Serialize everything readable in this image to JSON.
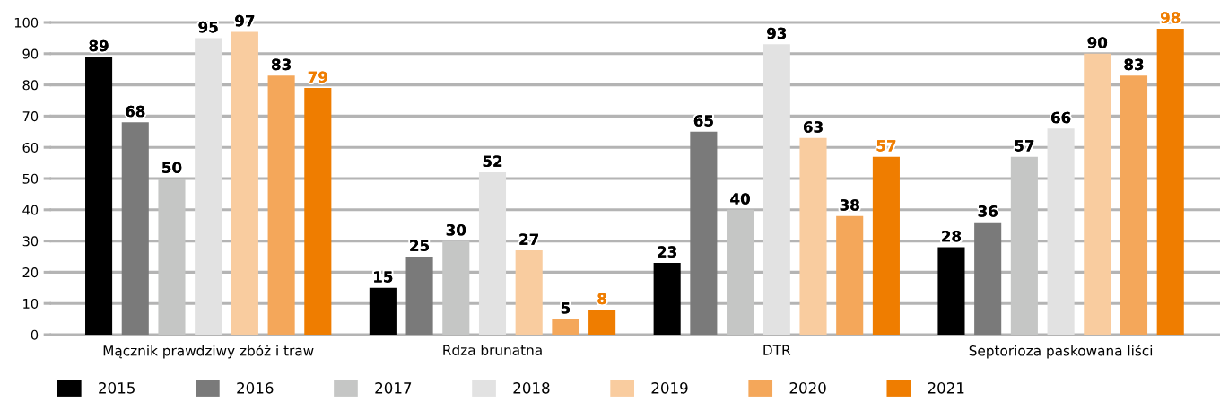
{
  "chart_data": {
    "type": "bar",
    "categories": [
      "Mącznik prawdziwy zbóż i traw",
      "Rdza brunatna",
      "DTR",
      "Septorioza paskowana liści"
    ],
    "series": [
      {
        "name": "2015",
        "color": "#000000",
        "values": [
          89,
          15,
          23,
          28
        ]
      },
      {
        "name": "2016",
        "color": "#7a7a7a",
        "values": [
          68,
          25,
          65,
          36
        ]
      },
      {
        "name": "2017",
        "color": "#c5c6c5",
        "values": [
          50,
          30,
          40,
          57
        ]
      },
      {
        "name": "2018",
        "color": "#e2e2e2",
        "values": [
          95,
          52,
          93,
          66
        ]
      },
      {
        "name": "2019",
        "color": "#f9cc9f",
        "values": [
          97,
          27,
          63,
          90
        ]
      },
      {
        "name": "2020",
        "color": "#f4a75a",
        "values": [
          83,
          5,
          38,
          83
        ]
      },
      {
        "name": "2021",
        "color": "#ef7d00",
        "values": [
          79,
          8,
          57,
          98
        ]
      }
    ],
    "ylim": [
      0,
      100
    ],
    "yticks": [
      0,
      10,
      20,
      30,
      40,
      50,
      60,
      70,
      80,
      90,
      100
    ],
    "grid": "y",
    "legend": "bottom",
    "data_labels": true
  }
}
